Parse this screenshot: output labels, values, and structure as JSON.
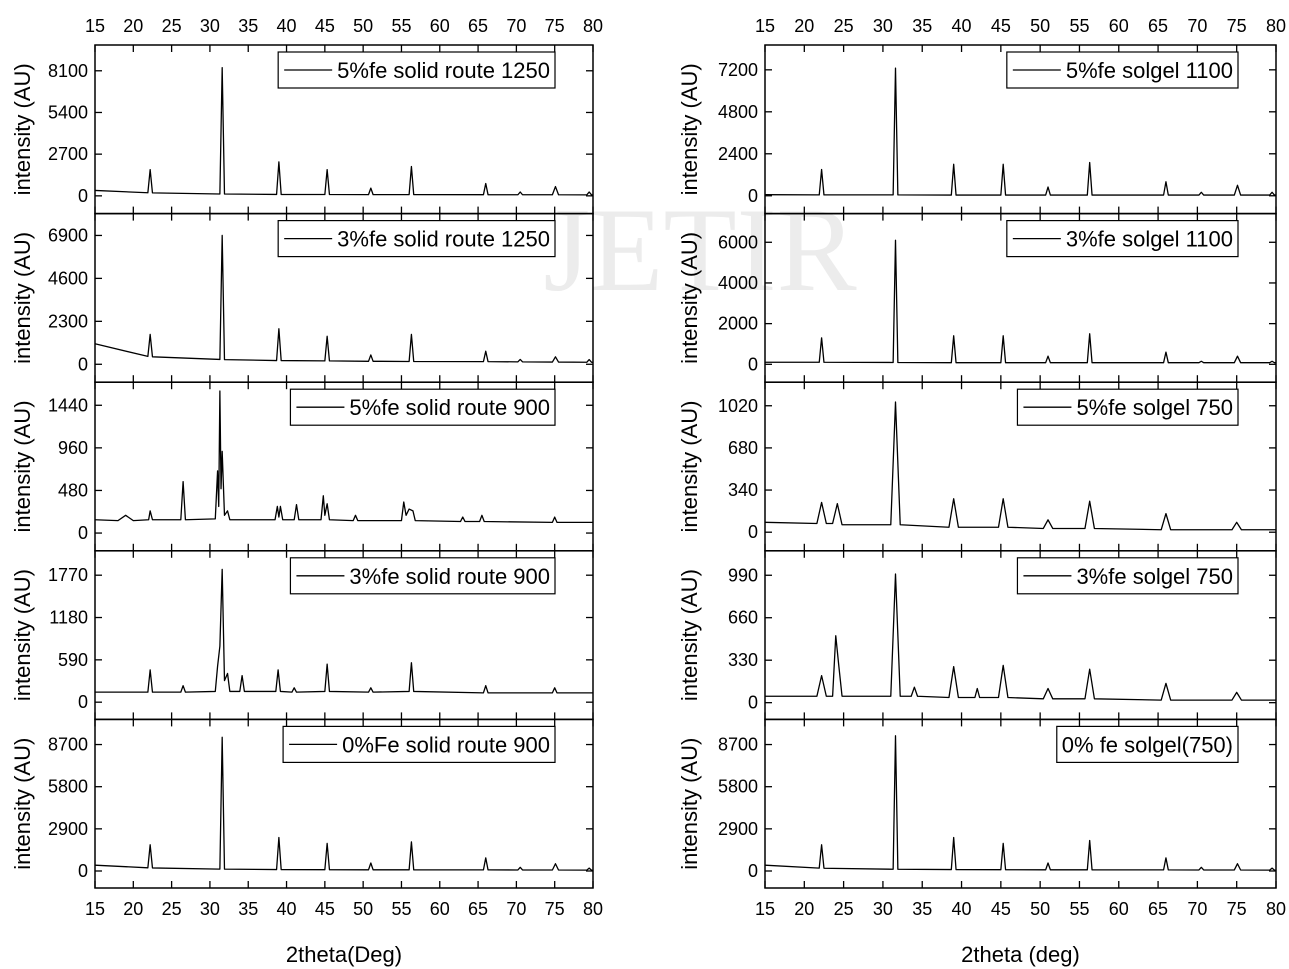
{
  "watermark": "JETIR",
  "chart_data": [
    {
      "type": "line",
      "ylabel": "intensity (AU)",
      "xlim": [
        15,
        80
      ],
      "xticks": [
        15,
        20,
        25,
        30,
        35,
        40,
        45,
        50,
        55,
        60,
        65,
        70,
        75,
        80
      ],
      "ylim": [
        -1150,
        9770
      ],
      "yticks": [
        0,
        2700,
        5400,
        8100
      ],
      "x": [
        15,
        21.9,
        22.2,
        22.5,
        31.3,
        31.6,
        31.9,
        38.7,
        39,
        39.3,
        45,
        45.3,
        45.6,
        50.7,
        51,
        51.3,
        56,
        56.3,
        56.6,
        65.7,
        66,
        66.3,
        70.2,
        70.5,
        70.8,
        74.7,
        75.1,
        75.5,
        79.2,
        79.5,
        79.8,
        80
      ],
      "series": [
        {
          "name": "5%fe solid route 1250",
          "color": "#000000",
          "values": [
            350,
            200,
            1700,
            190,
            120,
            8300,
            120,
            90,
            2200,
            90,
            85,
            1700,
            85,
            80,
            500,
            80,
            80,
            1900,
            80,
            75,
            800,
            75,
            70,
            250,
            70,
            70,
            600,
            70,
            65,
            250,
            65,
            60
          ]
        }
      ]
    },
    {
      "type": "line",
      "ylabel": "intensity (AU)",
      "xlim": [
        15,
        80
      ],
      "xticks": [
        15,
        20,
        25,
        30,
        35,
        40,
        45,
        50,
        55,
        60,
        65,
        70,
        75,
        80
      ],
      "ylim": [
        -960,
        8070
      ],
      "yticks": [
        0,
        2300,
        4600,
        6900
      ],
      "x": [
        15,
        21.9,
        22.2,
        22.5,
        31.3,
        31.6,
        31.9,
        38.7,
        39,
        39.3,
        45,
        45.3,
        45.6,
        50.7,
        51,
        51.3,
        56,
        56.3,
        56.6,
        65.7,
        66,
        66.3,
        70.2,
        70.5,
        70.8,
        74.7,
        75.1,
        75.5,
        79.2,
        79.5,
        79.8,
        80
      ],
      "series": [
        {
          "name": "3%fe solid route 1250",
          "color": "#000000",
          "values": [
            1100,
            420,
            1600,
            400,
            260,
            6900,
            250,
            200,
            1900,
            200,
            180,
            1500,
            180,
            160,
            500,
            160,
            150,
            1600,
            150,
            140,
            700,
            140,
            130,
            260,
            130,
            120,
            400,
            120,
            110,
            250,
            110,
            100
          ]
        }
      ]
    },
    {
      "type": "line",
      "ylabel": "intensity (AU)",
      "xlim": [
        15,
        80
      ],
      "xticks": [
        15,
        20,
        25,
        30,
        35,
        40,
        45,
        50,
        55,
        60,
        65,
        70,
        75,
        80
      ],
      "ylim": [
        -200,
        1700
      ],
      "yticks": [
        0,
        480,
        960,
        1440
      ],
      "x": [
        15,
        18,
        19,
        20,
        22,
        22.2,
        22.5,
        26.2,
        26.5,
        26.8,
        30.7,
        31,
        31.15,
        31.3,
        31.45,
        31.6,
        31.9,
        32.3,
        32.6,
        38.5,
        38.8,
        39,
        39.2,
        39.5,
        41,
        41.3,
        41.6,
        44.5,
        44.8,
        45,
        45.3,
        45.6,
        48.7,
        49,
        49.3,
        55,
        55.3,
        55.6,
        56,
        56.5,
        56.8,
        62.7,
        63,
        63.3,
        65.2,
        65.5,
        65.8,
        74.7,
        75,
        75.3,
        80
      ],
      "series": [
        {
          "name": "5%fe solid route 900",
          "color": "#000000",
          "values": [
            150,
            140,
            200,
            140,
            150,
            250,
            150,
            150,
            580,
            150,
            160,
            700,
            300,
            1600,
            500,
            920,
            200,
            250,
            150,
            150,
            300,
            180,
            300,
            150,
            150,
            320,
            150,
            150,
            420,
            200,
            330,
            150,
            140,
            200,
            140,
            140,
            350,
            200,
            270,
            250,
            140,
            130,
            180,
            130,
            130,
            200,
            130,
            120,
            180,
            120,
            120
          ]
        }
      ]
    },
    {
      "type": "line",
      "ylabel": "intensity (AU)",
      "xlim": [
        15,
        80
      ],
      "xticks": [
        15,
        20,
        25,
        30,
        35,
        40,
        45,
        50,
        55,
        60,
        65,
        70,
        75,
        80
      ],
      "ylim": [
        -240,
        2110
      ],
      "yticks": [
        0,
        590,
        1180,
        1770
      ],
      "x": [
        15,
        21.9,
        22.2,
        22.5,
        26.2,
        26.5,
        26.8,
        30.7,
        31,
        31.3,
        31.6,
        31.9,
        32.3,
        32.6,
        33.9,
        34.2,
        34.5,
        38.6,
        38.9,
        39.2,
        40.7,
        41,
        41.3,
        45,
        45.3,
        45.6,
        50.7,
        51,
        51.3,
        56,
        56.3,
        56.6,
        65.7,
        66,
        66.3,
        74.7,
        75,
        75.3,
        80
      ],
      "series": [
        {
          "name": "3%fe solid route 900",
          "color": "#000000",
          "values": [
            140,
            140,
            450,
            140,
            140,
            230,
            140,
            150,
            500,
            780,
            1850,
            300,
            400,
            150,
            150,
            370,
            150,
            150,
            450,
            150,
            140,
            200,
            140,
            150,
            530,
            150,
            140,
            200,
            140,
            150,
            550,
            150,
            130,
            230,
            130,
            130,
            200,
            130,
            130
          ]
        }
      ]
    },
    {
      "type": "line",
      "ylabel": "intensity (AU)",
      "xlabel": "2theta(Deg)",
      "xlim": [
        15,
        80
      ],
      "xticks": [
        15,
        20,
        25,
        30,
        35,
        40,
        45,
        50,
        55,
        60,
        65,
        70,
        75,
        80
      ],
      "ylim": [
        -1170,
        10430
      ],
      "yticks": [
        0,
        2900,
        5800,
        8700
      ],
      "x": [
        15,
        21.9,
        22.2,
        22.5,
        31.3,
        31.6,
        31.9,
        38.7,
        39,
        39.3,
        45,
        45.3,
        45.6,
        50.7,
        51,
        51.3,
        56,
        56.3,
        56.6,
        65.7,
        66,
        66.3,
        70.2,
        70.5,
        70.8,
        74.7,
        75.1,
        75.5,
        79.2,
        79.5,
        79.8,
        80
      ],
      "series": [
        {
          "name": "0%Fe solid route 900",
          "color": "#000000",
          "values": [
            400,
            220,
            1800,
            210,
            130,
            9200,
            130,
            100,
            2300,
            100,
            90,
            1900,
            90,
            80,
            550,
            80,
            80,
            2000,
            80,
            75,
            900,
            75,
            70,
            250,
            70,
            70,
            500,
            70,
            60,
            200,
            60,
            50
          ]
        }
      ]
    },
    {
      "type": "line",
      "ylabel": "intensity (AU)",
      "xlim": [
        15,
        80
      ],
      "xticks": [
        15,
        20,
        25,
        30,
        35,
        40,
        45,
        50,
        55,
        60,
        65,
        70,
        75,
        80
      ],
      "ylim": [
        -1020,
        8620
      ],
      "yticks": [
        0,
        2400,
        4800,
        7200
      ],
      "x": [
        15,
        21.9,
        22.2,
        22.5,
        31.3,
        31.6,
        31.9,
        38.7,
        39,
        39.3,
        45,
        45.3,
        45.6,
        50.7,
        51,
        51.3,
        56,
        56.3,
        56.6,
        65.7,
        66,
        66.3,
        70.2,
        70.5,
        70.8,
        74.7,
        75.1,
        75.5,
        79.2,
        79.5,
        79.8,
        80
      ],
      "series": [
        {
          "name": "5%fe solgel 1100",
          "color": "#000000",
          "values": [
            60,
            50,
            1500,
            50,
            50,
            7300,
            50,
            40,
            1800,
            40,
            40,
            1800,
            40,
            40,
            500,
            40,
            40,
            1900,
            40,
            40,
            800,
            40,
            40,
            200,
            40,
            40,
            600,
            40,
            40,
            200,
            40,
            40
          ]
        }
      ]
    },
    {
      "type": "line",
      "ylabel": "intensity (AU)",
      "xlim": [
        15,
        80
      ],
      "xticks": [
        15,
        20,
        25,
        30,
        35,
        40,
        45,
        50,
        55,
        60,
        65,
        70,
        75,
        80
      ],
      "ylim": [
        -880,
        7410
      ],
      "yticks": [
        0,
        2000,
        4000,
        6000
      ],
      "x": [
        15,
        21.9,
        22.2,
        22.5,
        31.3,
        31.6,
        31.9,
        38.7,
        39,
        39.3,
        45,
        45.3,
        45.6,
        50.7,
        51,
        51.3,
        56,
        56.3,
        56.6,
        65.7,
        66,
        66.3,
        70.2,
        70.5,
        70.8,
        74.7,
        75.1,
        75.5,
        79.2,
        79.5,
        79.8,
        80
      ],
      "series": [
        {
          "name": "3%fe solgel 1100",
          "color": "#000000",
          "values": [
            100,
            100,
            1300,
            100,
            90,
            6100,
            90,
            80,
            1400,
            80,
            80,
            1400,
            80,
            80,
            400,
            80,
            80,
            1500,
            80,
            80,
            600,
            80,
            80,
            150,
            80,
            80,
            400,
            80,
            80,
            150,
            80,
            80
          ]
        }
      ]
    },
    {
      "type": "line",
      "ylabel": "intensity (AU)",
      "xlim": [
        15,
        80
      ],
      "xticks": [
        15,
        20,
        25,
        30,
        35,
        40,
        45,
        50,
        55,
        60,
        65,
        70,
        75,
        80
      ],
      "ylim": [
        -150,
        1210
      ],
      "yticks": [
        0,
        340,
        680,
        1020
      ],
      "x": [
        15,
        21.6,
        22.2,
        22.8,
        23.6,
        24.2,
        24.8,
        31,
        31.6,
        32.2,
        38.4,
        39,
        39.6,
        44.7,
        45.3,
        45.9,
        50.4,
        51,
        51.6,
        55.7,
        56.3,
        56.9,
        65.4,
        66,
        66.6,
        74.4,
        75,
        75.6,
        80
      ],
      "series": [
        {
          "name": "5%fe solgel 750",
          "color": "#000000",
          "values": [
            80,
            70,
            240,
            70,
            70,
            230,
            60,
            60,
            1050,
            60,
            40,
            270,
            40,
            40,
            270,
            40,
            30,
            100,
            30,
            30,
            250,
            30,
            20,
            150,
            20,
            20,
            80,
            20,
            20
          ]
        }
      ]
    },
    {
      "type": "line",
      "ylabel": "intensity (AU)",
      "xlim": [
        15,
        80
      ],
      "xticks": [
        15,
        20,
        25,
        30,
        35,
        40,
        45,
        50,
        55,
        60,
        65,
        70,
        75,
        80
      ],
      "ylim": [
        -130,
        1180
      ],
      "yticks": [
        0,
        330,
        660,
        990
      ],
      "x": [
        15,
        21.6,
        22.2,
        22.8,
        23.6,
        24,
        24.4,
        24.8,
        31,
        31.6,
        32.2,
        33.6,
        34,
        34.4,
        38.4,
        39,
        39.6,
        41.7,
        42,
        42.3,
        44.7,
        45.3,
        45.9,
        50.4,
        51,
        51.6,
        55.7,
        56.3,
        56.9,
        65.4,
        66,
        66.6,
        74.4,
        75,
        75.6,
        80
      ],
      "series": [
        {
          "name": "3%fe solgel 750",
          "color": "#000000",
          "values": [
            50,
            50,
            210,
            50,
            50,
            520,
            280,
            50,
            50,
            1000,
            50,
            50,
            120,
            50,
            40,
            280,
            40,
            40,
            110,
            40,
            40,
            290,
            40,
            30,
            110,
            30,
            30,
            260,
            30,
            20,
            150,
            20,
            20,
            80,
            20,
            20
          ]
        }
      ]
    },
    {
      "type": "line",
      "ylabel": "intensity (AU)",
      "xlabel": "2theta (deg)",
      "legend_sample": false,
      "xlim": [
        15,
        80
      ],
      "xticks": [
        15,
        20,
        25,
        30,
        35,
        40,
        45,
        50,
        55,
        60,
        65,
        70,
        75,
        80
      ],
      "ylim": [
        -1170,
        10430
      ],
      "yticks": [
        0,
        2900,
        5800,
        8700
      ],
      "x": [
        15,
        21.9,
        22.2,
        22.5,
        31.3,
        31.6,
        31.9,
        38.7,
        39,
        39.3,
        45,
        45.3,
        45.6,
        50.7,
        51,
        51.3,
        56,
        56.3,
        56.6,
        65.7,
        66,
        66.3,
        70.2,
        70.5,
        70.8,
        74.7,
        75.1,
        75.5,
        79.2,
        79.5,
        79.8,
        80
      ],
      "series": [
        {
          "name": "0% fe solgel(750)",
          "color": "#000000",
          "values": [
            400,
            200,
            1800,
            190,
            120,
            9300,
            120,
            100,
            2300,
            100,
            90,
            1900,
            90,
            80,
            550,
            80,
            80,
            2100,
            80,
            75,
            900,
            75,
            70,
            250,
            70,
            70,
            500,
            70,
            60,
            200,
            60,
            50
          ]
        }
      ]
    }
  ]
}
